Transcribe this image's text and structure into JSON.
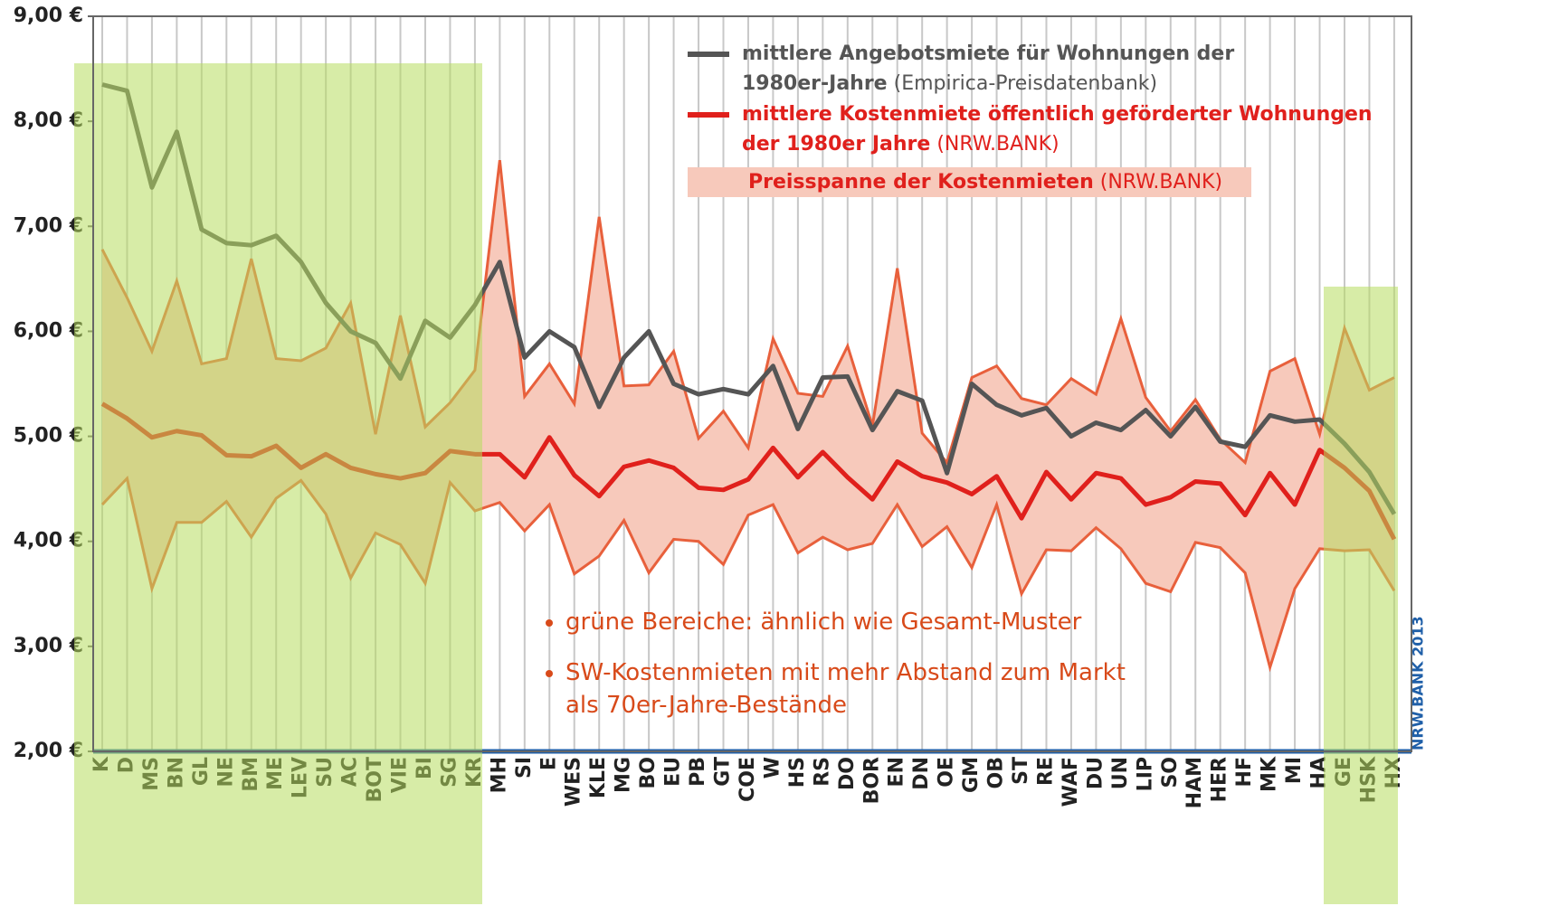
{
  "chart_data": {
    "type": "line",
    "categories": [
      "K",
      "D",
      "MS",
      "BN",
      "GL",
      "NE",
      "BM",
      "ME",
      "LEV",
      "SU",
      "AC",
      "BOT",
      "VIE",
      "BI",
      "SG",
      "KR",
      "MH",
      "SI",
      "E",
      "WES",
      "KLE",
      "MG",
      "BO",
      "EU",
      "PB",
      "GT",
      "COE",
      "W",
      "HS",
      "RS",
      "DO",
      "BOR",
      "EN",
      "DN",
      "OE",
      "GM",
      "OB",
      "ST",
      "RE",
      "WAF",
      "DU",
      "UN",
      "LIP",
      "SO",
      "HAM",
      "HER",
      "HF",
      "MK",
      "MI",
      "HA",
      "GE",
      "HSK",
      "HX"
    ],
    "ylim": [
      2,
      9
    ],
    "yticks": [
      {
        "value": 2,
        "label": "2,00 €"
      },
      {
        "value": 3,
        "label": "3,00 €"
      },
      {
        "value": 4,
        "label": "4,00 €"
      },
      {
        "value": 5,
        "label": "5,00 €"
      },
      {
        "value": 6,
        "label": "6,00 €"
      },
      {
        "value": 7,
        "label": "7,00 €"
      },
      {
        "value": 8,
        "label": "8,00 €"
      },
      {
        "value": 9,
        "label": "9,00 €"
      }
    ],
    "band": {
      "name": "Preisspanne der Kostenmieten",
      "source": "(NRW.BANK)",
      "color": "#f7c9bb",
      "edge_color": "#e8603c",
      "upper": [
        6.78,
        6.32,
        5.81,
        6.48,
        5.69,
        5.74,
        6.69,
        5.74,
        5.72,
        5.84,
        6.27,
        5.02,
        6.15,
        5.09,
        5.32,
        5.63,
        7.63,
        5.38,
        5.69,
        5.31,
        7.09,
        5.48,
        5.49,
        5.81,
        4.98,
        5.24,
        4.89,
        5.93,
        5.41,
        5.38,
        5.86,
        5.1,
        6.6,
        5.03,
        4.75,
        5.56,
        5.67,
        5.36,
        5.3,
        5.55,
        5.4,
        6.12,
        5.37,
        5.05,
        5.35,
        4.97,
        4.75,
        5.62,
        5.74,
        5.02,
        6.03,
        5.44,
        5.56
      ],
      "lower": [
        4.35,
        4.6,
        3.55,
        4.18,
        4.18,
        4.38,
        4.04,
        4.41,
        4.58,
        4.26,
        3.65,
        4.08,
        3.97,
        3.6,
        4.56,
        4.29,
        4.37,
        4.1,
        4.35,
        3.69,
        3.86,
        4.2,
        3.7,
        4.02,
        4.0,
        3.78,
        4.25,
        4.35,
        3.89,
        4.04,
        3.92,
        3.98,
        4.35,
        3.95,
        4.14,
        3.75,
        4.35,
        3.5,
        3.92,
        3.91,
        4.13,
        3.93,
        3.6,
        3.52,
        3.99,
        3.94,
        3.7,
        2.8,
        3.55,
        3.93,
        3.91,
        3.92,
        3.53
      ]
    },
    "series": [
      {
        "name": "mittlere Angebotsmiete für Wohnungen der 1980er-Jahre",
        "source": "(Empirica-Preisdatenbank)",
        "color": "#555555",
        "values": [
          8.35,
          8.29,
          7.37,
          7.9,
          6.97,
          6.84,
          6.82,
          6.91,
          6.66,
          6.27,
          6.0,
          5.89,
          5.55,
          6.1,
          5.94,
          6.25,
          6.66,
          5.75,
          6.0,
          5.85,
          5.28,
          5.75,
          6.0,
          5.5,
          5.4,
          5.45,
          5.4,
          5.67,
          5.07,
          5.56,
          5.57,
          5.06,
          5.43,
          5.34,
          4.65,
          5.5,
          5.3,
          5.2,
          5.27,
          5.0,
          5.13,
          5.06,
          5.25,
          5.0,
          5.28,
          4.95,
          4.9,
          5.2,
          5.14,
          5.16,
          4.93,
          4.66,
          4.26
        ]
      },
      {
        "name": "mittlere Kostenmiete öffentlich geförderter Wohnungen der 1980er Jahre",
        "source": "(NRW.BANK)",
        "color": "#e0201c",
        "values": [
          5.31,
          5.17,
          4.99,
          5.05,
          5.01,
          4.82,
          4.81,
          4.91,
          4.7,
          4.83,
          4.7,
          4.64,
          4.6,
          4.65,
          4.86,
          4.83,
          4.83,
          4.61,
          4.99,
          4.63,
          4.43,
          4.71,
          4.77,
          4.7,
          4.51,
          4.49,
          4.59,
          4.89,
          4.61,
          4.85,
          4.61,
          4.4,
          4.76,
          4.62,
          4.56,
          4.45,
          4.62,
          4.22,
          4.66,
          4.4,
          4.65,
          4.6,
          4.35,
          4.42,
          4.57,
          4.55,
          4.25,
          4.65,
          4.35,
          4.87,
          4.7,
          4.48,
          4.02
        ]
      }
    ],
    "annotations": [
      "grüne Bereiche: ähnlich wie Gesamt-Muster",
      "SW-Kostenmieten mit mehr Abstand zum Markt als 70er-Jahre-Bestände"
    ],
    "credit": "NRW.BANK 2013",
    "grid": true
  }
}
